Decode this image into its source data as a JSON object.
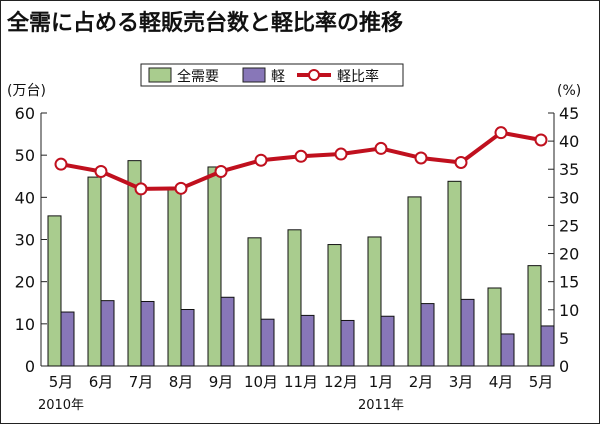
{
  "chart_data": {
    "type": "bar",
    "title": "全需に占める軽販売台数と軽比率の推移",
    "categories": [
      "5月",
      "6月",
      "7月",
      "8月",
      "9月",
      "10月",
      "11月",
      "12月",
      "1月",
      "2月",
      "3月",
      "4月",
      "5月"
    ],
    "year_labels": [
      {
        "index": 0,
        "label": "2010年"
      },
      {
        "index": 8,
        "label": "2011年"
      }
    ],
    "ylabel": "(万台)",
    "y2label": "(%)",
    "ylim": [
      0,
      60
    ],
    "y2lim": [
      0,
      45
    ],
    "yticks": [
      "0",
      "10",
      "20",
      "30",
      "40",
      "50",
      "60"
    ],
    "y2ticks": [
      "0",
      "5",
      "10",
      "15",
      "20",
      "25",
      "30",
      "35",
      "40",
      "45"
    ],
    "legend_position": "top-center",
    "series": [
      {
        "name": "全需要",
        "type": "bar",
        "axis": "left",
        "color": "#a9cc8e",
        "values": [
          35.6,
          44.8,
          48.7,
          42.0,
          47.2,
          30.4,
          32.3,
          28.8,
          30.6,
          40.1,
          43.8,
          18.5,
          23.8
        ]
      },
      {
        "name": "軽",
        "type": "bar",
        "axis": "left",
        "color": "#8877b8",
        "values": [
          12.8,
          15.5,
          15.3,
          13.4,
          16.3,
          11.1,
          12.0,
          10.8,
          11.8,
          14.8,
          15.8,
          7.6,
          9.5
        ]
      },
      {
        "name": "軽比率",
        "type": "line",
        "axis": "right",
        "color": "#c0101e",
        "values": [
          35.9,
          34.6,
          31.5,
          31.6,
          34.6,
          36.6,
          37.3,
          37.7,
          38.7,
          37.0,
          36.2,
          41.5,
          40.2
        ]
      }
    ]
  }
}
